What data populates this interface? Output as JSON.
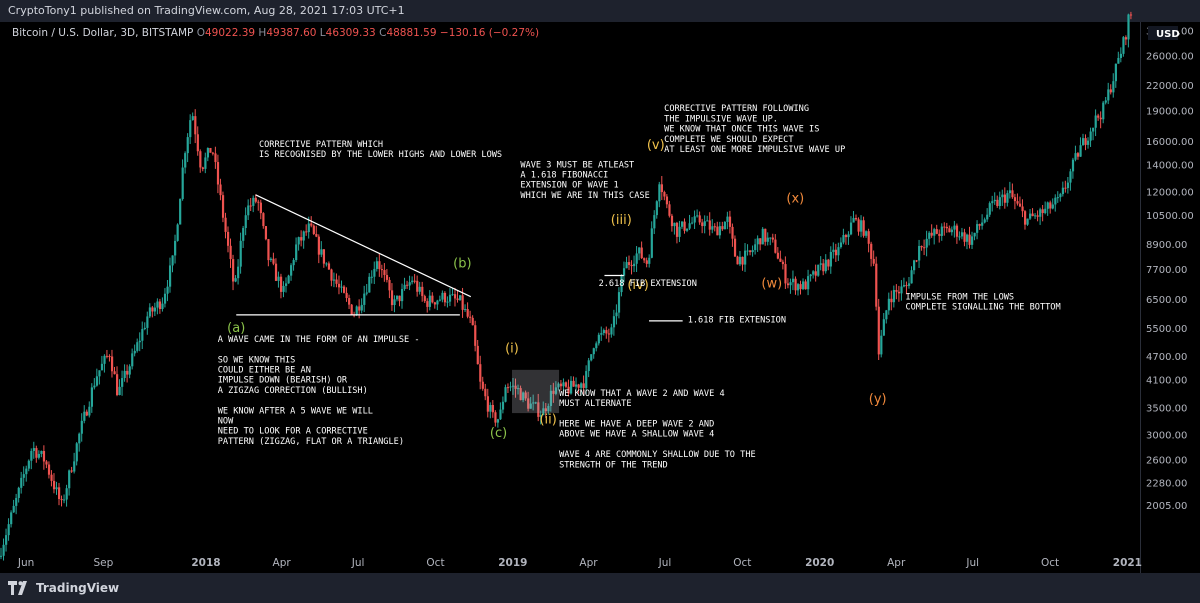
{
  "header": {
    "publisher": "CryptoTony1 published on TradingView.com, Aug 28, 2021 17:03 UTC+1"
  },
  "legend": {
    "symbol": "Bitcoin / U.S. Dollar, 3D, BITSTAMP",
    "open_label": "O",
    "open": "49022.39",
    "high_label": "H",
    "high": "49387.60",
    "low_label": "L",
    "low": "46309.33",
    "close_label": "C",
    "close": "48881.59",
    "change": "−130.16 (−0.27%)"
  },
  "footer": {
    "brand": "TradingView"
  },
  "colors": {
    "up": "#26a69a",
    "down": "#ef5350",
    "background": "#000000",
    "text": "#d1d4dc",
    "wave_green": "#8bc34a",
    "wave_yellow": "#f0c24b",
    "wave_orange": "#f0893b"
  },
  "chart_data": {
    "type": "candlestick",
    "y_scale": "log",
    "currency": "USD",
    "y_ticks": [
      2005,
      2280,
      2600,
      3000,
      3500,
      4100,
      4700,
      5500,
      6500,
      7700,
      8900,
      10500,
      12000,
      14000,
      16000,
      19000,
      22000,
      26000,
      30000
    ],
    "y_tick_labels": [
      "2005.00",
      "2280.00",
      "2600.00",
      "3000.00",
      "3500.00",
      "4100.00",
      "4700.00",
      "5500.00",
      "6500.00",
      "7700.00",
      "8900.00",
      "10500.00",
      "12000.00",
      "14000.00",
      "16000.00",
      "19000.00",
      "22000.00",
      "26000.00",
      "30000.00"
    ],
    "current_price_label": "USD",
    "x_ticks": [
      {
        "label": "Jun",
        "date": "2017-06-01",
        "bold": false
      },
      {
        "label": "Sep",
        "date": "2017-09-01",
        "bold": false
      },
      {
        "label": "2018",
        "date": "2018-01-01",
        "bold": true
      },
      {
        "label": "Apr",
        "date": "2018-04-01",
        "bold": false
      },
      {
        "label": "Jul",
        "date": "2018-07-01",
        "bold": false
      },
      {
        "label": "Oct",
        "date": "2018-10-01",
        "bold": false
      },
      {
        "label": "2019",
        "date": "2019-01-01",
        "bold": true
      },
      {
        "label": "Apr",
        "date": "2019-04-01",
        "bold": false
      },
      {
        "label": "Jul",
        "date": "2019-07-01",
        "bold": false
      },
      {
        "label": "Oct",
        "date": "2019-10-01",
        "bold": false
      },
      {
        "label": "2020",
        "date": "2020-01-01",
        "bold": true
      },
      {
        "label": "Apr",
        "date": "2020-04-01",
        "bold": false
      },
      {
        "label": "Jul",
        "date": "2020-07-01",
        "bold": false
      },
      {
        "label": "Oct",
        "date": "2020-10-01",
        "bold": false
      },
      {
        "label": "2021",
        "date": "2021-01-01",
        "bold": true
      }
    ],
    "price_path": [
      [
        "2017-05-01",
        1500
      ],
      [
        "2017-05-20",
        2000
      ],
      [
        "2017-06-10",
        2800
      ],
      [
        "2017-06-25",
        2600
      ],
      [
        "2017-07-15",
        2000
      ],
      [
        "2017-08-05",
        3000
      ],
      [
        "2017-08-25",
        4200
      ],
      [
        "2017-09-10",
        4800
      ],
      [
        "2017-09-20",
        3800
      ],
      [
        "2017-10-10",
        4800
      ],
      [
        "2017-10-25",
        5900
      ],
      [
        "2017-11-12",
        6500
      ],
      [
        "2017-11-25",
        8200
      ],
      [
        "2017-12-08",
        15000
      ],
      [
        "2017-12-17",
        19200
      ],
      [
        "2017-12-28",
        13800
      ],
      [
        "2018-01-10",
        15500
      ],
      [
        "2018-01-20",
        11500
      ],
      [
        "2018-02-06",
        6800
      ],
      [
        "2018-02-18",
        10800
      ],
      [
        "2018-03-05",
        11500
      ],
      [
        "2018-03-18",
        8200
      ],
      [
        "2018-04-06",
        6700
      ],
      [
        "2018-04-20",
        8800
      ],
      [
        "2018-05-06",
        9800
      ],
      [
        "2018-05-20",
        8400
      ],
      [
        "2018-06-10",
        6900
      ],
      [
        "2018-06-28",
        6000
      ],
      [
        "2018-07-08",
        6600
      ],
      [
        "2018-07-25",
        8200
      ],
      [
        "2018-08-14",
        6300
      ],
      [
        "2018-08-30",
        7000
      ],
      [
        "2018-09-05",
        7300
      ],
      [
        "2018-09-20",
        6400
      ],
      [
        "2018-10-15",
        6600
      ],
      [
        "2018-11-01",
        6400
      ],
      [
        "2018-11-15",
        5600
      ],
      [
        "2018-11-25",
        4000
      ],
      [
        "2018-12-10",
        3300
      ],
      [
        "2018-12-18",
        3300
      ],
      [
        "2018-12-25",
        4000
      ],
      [
        "2019-01-08",
        3900
      ],
      [
        "2019-01-20",
        3600
      ],
      [
        "2019-02-07",
        3400
      ],
      [
        "2019-02-20",
        3900
      ],
      [
        "2019-03-10",
        3900
      ],
      [
        "2019-03-30",
        4100
      ],
      [
        "2019-04-10",
        5200
      ],
      [
        "2019-05-01",
        5400
      ],
      [
        "2019-05-15",
        7800
      ],
      [
        "2019-06-01",
        8500
      ],
      [
        "2019-06-12",
        8000
      ],
      [
        "2019-06-26",
        13000
      ],
      [
        "2019-07-05",
        11000
      ],
      [
        "2019-07-17",
        9600
      ],
      [
        "2019-07-30",
        10000
      ],
      [
        "2019-08-15",
        10200
      ],
      [
        "2019-08-30",
        9600
      ],
      [
        "2019-09-15",
        10200
      ],
      [
        "2019-09-25",
        8200
      ],
      [
        "2019-10-10",
        8300
      ],
      [
        "2019-10-26",
        9400
      ],
      [
        "2019-11-10",
        8800
      ],
      [
        "2019-11-25",
        7200
      ],
      [
        "2019-12-15",
        7000
      ],
      [
        "2020-01-05",
        7800
      ],
      [
        "2020-01-25",
        8600
      ],
      [
        "2020-02-12",
        10200
      ],
      [
        "2020-02-24",
        9700
      ],
      [
        "2020-03-08",
        7900
      ],
      [
        "2020-03-13",
        4800
      ],
      [
        "2020-03-25",
        6600
      ],
      [
        "2020-04-15",
        7000
      ],
      [
        "2020-05-01",
        8900
      ],
      [
        "2020-05-20",
        9500
      ],
      [
        "2020-06-10",
        9700
      ],
      [
        "2020-06-30",
        9100
      ],
      [
        "2020-07-25",
        11000
      ],
      [
        "2020-08-15",
        11900
      ],
      [
        "2020-09-05",
        10200
      ],
      [
        "2020-09-25",
        10700
      ],
      [
        "2020-10-15",
        11500
      ],
      [
        "2020-11-05",
        15000
      ],
      [
        "2020-11-25",
        18000
      ],
      [
        "2020-12-05",
        19200
      ],
      [
        "2020-12-17",
        23000
      ],
      [
        "2020-12-31",
        29000
      ],
      [
        "2021-01-05",
        33000
      ]
    ],
    "trendlines": [
      {
        "start": [
          "2018-03-01",
          11800
        ],
        "end": [
          "2018-11-12",
          6600
        ]
      },
      {
        "start": [
          "2018-02-06",
          5950
        ],
        "end": [
          "2018-10-30",
          5950
        ]
      },
      {
        "start": [
          "2019-04-20",
          7450
        ],
        "end": [
          "2019-05-13",
          7450
        ]
      },
      {
        "start": [
          "2019-06-12",
          5750
        ],
        "end": [
          "2019-07-22",
          5750
        ]
      }
    ],
    "highlight_box": {
      "start": "2018-12-31",
      "end": "2019-02-25",
      "top": 4350,
      "bottom": 3400
    },
    "wave_labels": [
      {
        "text": "(a)",
        "date": "2018-02-06",
        "price": 5400,
        "color": "wave_green"
      },
      {
        "text": "(b)",
        "date": "2018-11-02",
        "price": 7800,
        "color": "wave_green"
      },
      {
        "text": "(c)",
        "date": "2018-12-15",
        "price": 2970,
        "color": "wave_green"
      },
      {
        "text": "(i)",
        "date": "2018-12-31",
        "price": 4800,
        "color": "wave_yellow"
      },
      {
        "text": "(ii)",
        "date": "2019-02-12",
        "price": 3200,
        "color": "wave_yellow"
      },
      {
        "text": "(iii)",
        "date": "2019-05-10",
        "price": 10000,
        "color": "wave_yellow"
      },
      {
        "text": "(iv)",
        "date": "2019-05-30",
        "price": 6900,
        "color": "wave_yellow"
      },
      {
        "text": "(v)",
        "date": "2019-06-20",
        "price": 15300,
        "color": "wave_yellow"
      },
      {
        "text": "(w)",
        "date": "2019-11-05",
        "price": 6950,
        "color": "wave_orange"
      },
      {
        "text": "(x)",
        "date": "2019-12-03",
        "price": 11300,
        "color": "wave_orange"
      },
      {
        "text": "(y)",
        "date": "2020-03-10",
        "price": 3600,
        "color": "wave_orange"
      }
    ],
    "annotations": [
      {
        "date": "2018-03-05",
        "price": 15500,
        "lines": [
          "CORRECTIVE PATTERN WHICH",
          "IS RECOGNISED BY THE LOWER HIGHS AND LOWER LOWS"
        ]
      },
      {
        "date": "2018-01-15",
        "price": 5100,
        "lines": [
          "A WAVE CAME IN THE FORM OF AN IMPULSE -",
          "",
          "SO WE KNOW THIS",
          "COULD EITHER BE AN",
          "IMPULSE DOWN (BEARISH) OR",
          "A ZIGZAG CORRECTION (BULLISH)",
          "",
          "WE KNOW AFTER A 5 WAVE WE WILL",
          "NOW",
          "NEED TO LOOK FOR A CORRECTIVE",
          "PATTERN (ZIGZAG, FLAT OR A TRIANGLE)"
        ]
      },
      {
        "date": "2019-01-10",
        "price": 13800,
        "lines": [
          "WAVE 3 MUST BE ATLEAST",
          "A 1.618 FIBONACCI",
          "EXTENSION OF WAVE 1",
          "WHICH WE ARE IN THIS CASE"
        ]
      },
      {
        "date": "2019-04-13",
        "price": 7020,
        "lines": [
          "2.618 FIB EXTENSION"
        ]
      },
      {
        "date": "2019-07-28",
        "price": 5690,
        "lines": [
          "1.618 FIB EXTENSION"
        ]
      },
      {
        "date": "2019-06-30",
        "price": 19000,
        "lines": [
          "CORRECTIVE PATTERN FOLLOWING",
          "THE IMPULSIVE WAVE UP.",
          "WE KNOW THAT ONCE THIS WAVE IS",
          "COMPLETE WE SHOULD EXPECT",
          "AT LEAST ONE MORE IMPULSIVE WAVE UP"
        ]
      },
      {
        "date": "2019-02-25",
        "price": 3750,
        "lines": [
          "WE KNOW THAT A WAVE 2 AND WAVE 4",
          "MUST ALTERNATE",
          "",
          "HERE WE HAVE A DEEP WAVE 2 AND",
          "ABOVE WE HAVE A SHALLOW WAVE 4",
          "",
          "WAVE 4 ARE COMMONLY SHALLOW DUE TO THE",
          "STRENGTH OF THE TREND"
        ]
      },
      {
        "date": "2020-04-12",
        "price": 6500,
        "lines": [
          "IMPULSE FROM THE LOWS",
          "COMPLETE SIGNALLING THE BOTTOM"
        ]
      }
    ]
  }
}
